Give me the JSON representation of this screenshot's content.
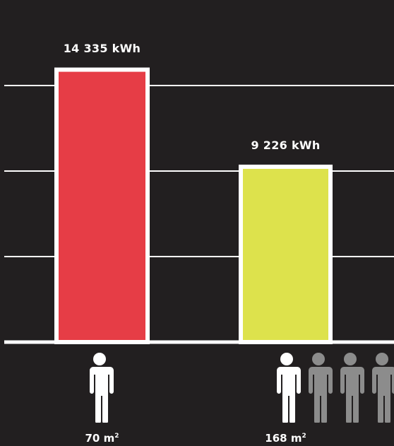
{
  "chart_data": {
    "type": "bar",
    "categories": [
      "70 m²",
      "168 m²"
    ],
    "values": [
      14335,
      9226
    ],
    "value_labels": [
      "14 335 kWh",
      "9 226 kWh"
    ],
    "unit": "kWh",
    "ylim": [
      0,
      18000
    ],
    "grid": true,
    "bar_colors": [
      "#e63d46",
      "#dde24c"
    ],
    "people_per_category": [
      {
        "highlighted": 1,
        "dimmed": 0
      },
      {
        "highlighted": 1,
        "dimmed": 3
      }
    ]
  },
  "categories": [
    {
      "value": "70",
      "unit": "m",
      "exp": "2"
    },
    {
      "value": "168",
      "unit": "m",
      "exp": "2"
    }
  ],
  "colors": {
    "background": "#221f20",
    "gridline": "#ffffff",
    "bar_border": "#ffffff",
    "person_highlight": "#ffffff",
    "person_dim": "#8c8c8c"
  },
  "icons": {
    "person": "person-icon"
  }
}
